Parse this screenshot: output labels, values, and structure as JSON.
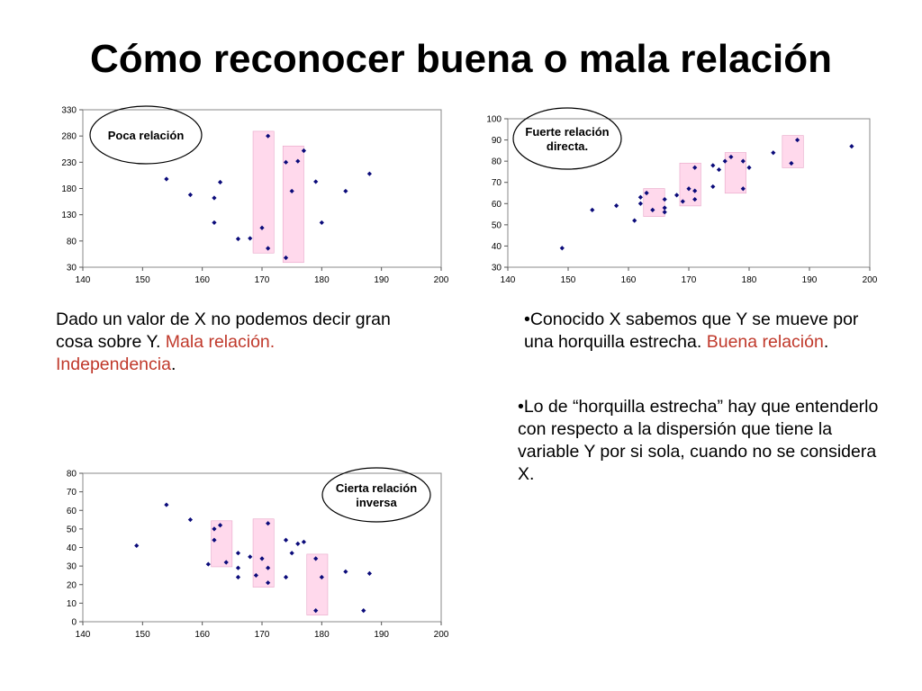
{
  "title": "Cómo reconocer buena o mala relación",
  "notes": {
    "left": {
      "before": "Dado un valor de X no podemos decir gran cosa sobre Y. ",
      "accent": "Mala relación. Independencia",
      "after": "."
    },
    "right1": {
      "before": "•Conocido  X sabemos que Y se mueve por una horquilla estrecha. ",
      "accent": "Buena relación",
      "after": "."
    },
    "right2": {
      "text": "•Lo de “horquilla estrecha” hay que entenderlo con respecto a la dispersión que tiene la variable Y por si sola, cuando no se considera X."
    }
  },
  "colors": {
    "points": "#0a0a7a",
    "band": "#ffd9ec",
    "band_border": "#e7a6c8",
    "plot_border": "#888888"
  },
  "chart_data": [
    {
      "type": "scatter",
      "label_lines": [
        "Poca relación"
      ],
      "xlim": [
        140,
        200
      ],
      "ylim": [
        30,
        330
      ],
      "xticks": [
        140,
        150,
        160,
        170,
        180,
        190,
        200
      ],
      "yticks": [
        30,
        80,
        130,
        180,
        230,
        280,
        330
      ],
      "points": [
        [
          154,
          198
        ],
        [
          158,
          168
        ],
        [
          162,
          162
        ],
        [
          162,
          115
        ],
        [
          163,
          192
        ],
        [
          166,
          84
        ],
        [
          168,
          85
        ],
        [
          170,
          105
        ],
        [
          171,
          280
        ],
        [
          171,
          66
        ],
        [
          174,
          48
        ],
        [
          174,
          230
        ],
        [
          175,
          175
        ],
        [
          176,
          232
        ],
        [
          177,
          252
        ],
        [
          179,
          193
        ],
        [
          180,
          115
        ],
        [
          184,
          175
        ],
        [
          188,
          208
        ]
      ],
      "bands": [
        [
          168.5,
          172
        ],
        [
          173.5,
          177
        ]
      ]
    },
    {
      "type": "scatter",
      "label_lines": [
        "Fuerte relación",
        "directa."
      ],
      "xlim": [
        140,
        200
      ],
      "ylim": [
        30,
        100
      ],
      "xticks": [
        140,
        150,
        160,
        170,
        180,
        190,
        200
      ],
      "yticks": [
        30,
        40,
        50,
        60,
        70,
        80,
        90,
        100
      ],
      "points": [
        [
          149,
          39
        ],
        [
          154,
          57
        ],
        [
          158,
          59
        ],
        [
          161,
          52
        ],
        [
          162,
          60
        ],
        [
          162,
          63
        ],
        [
          163,
          65
        ],
        [
          164,
          57
        ],
        [
          166,
          56
        ],
        [
          166,
          58
        ],
        [
          166,
          62
        ],
        [
          168,
          64
        ],
        [
          169,
          61
        ],
        [
          170,
          67
        ],
        [
          171,
          62
        ],
        [
          171,
          66
        ],
        [
          171,
          77
        ],
        [
          174,
          68
        ],
        [
          174,
          78
        ],
        [
          175,
          76
        ],
        [
          176,
          80
        ],
        [
          177,
          82
        ],
        [
          179,
          67
        ],
        [
          179,
          80
        ],
        [
          180,
          77
        ],
        [
          184,
          84
        ],
        [
          187,
          79
        ],
        [
          188,
          90
        ],
        [
          197,
          87
        ]
      ],
      "bands": [
        [
          162.5,
          166
        ],
        [
          168.5,
          172
        ],
        [
          176,
          179.5
        ],
        [
          185.5,
          189
        ]
      ]
    },
    {
      "type": "scatter",
      "label_lines": [
        "Cierta relación",
        "inversa"
      ],
      "xlim": [
        140,
        200
      ],
      "ylim": [
        0,
        80
      ],
      "xticks": [
        140,
        150,
        160,
        170,
        180,
        190,
        200
      ],
      "yticks": [
        0,
        10,
        20,
        30,
        40,
        50,
        60,
        70,
        80
      ],
      "points": [
        [
          149,
          41
        ],
        [
          154,
          63
        ],
        [
          158,
          55
        ],
        [
          161,
          31
        ],
        [
          162,
          44
        ],
        [
          162,
          50
        ],
        [
          163,
          52
        ],
        [
          164,
          32
        ],
        [
          166,
          24
        ],
        [
          166,
          29
        ],
        [
          166,
          37
        ],
        [
          168,
          35
        ],
        [
          169,
          25
        ],
        [
          170,
          34
        ],
        [
          171,
          21
        ],
        [
          171,
          29
        ],
        [
          171,
          53
        ],
        [
          174,
          24
        ],
        [
          174,
          44
        ],
        [
          175,
          37
        ],
        [
          176,
          42
        ],
        [
          177,
          43
        ],
        [
          179,
          34
        ],
        [
          179,
          6
        ],
        [
          180,
          24
        ],
        [
          184,
          27
        ],
        [
          187,
          6
        ],
        [
          188,
          26
        ]
      ],
      "bands": [
        [
          161.5,
          165
        ],
        [
          168.5,
          172
        ],
        [
          177.5,
          181
        ]
      ]
    }
  ]
}
